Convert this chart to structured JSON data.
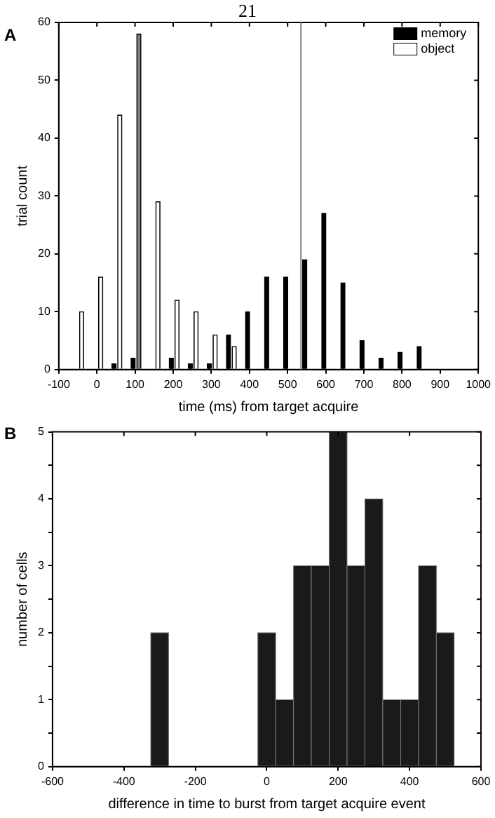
{
  "chart_data": [
    {
      "type": "bar",
      "annotations": [
        "21",
        "A"
      ],
      "xlabel": "time (ms) from target acquire",
      "ylabel": "trial count",
      "legend": "top right",
      "grid": false,
      "xlim": [
        -100,
        1000
      ],
      "xticks": [
        -100,
        0,
        100,
        200,
        300,
        400,
        500,
        600,
        700,
        800,
        900,
        1000
      ],
      "ylim": [
        0,
        60
      ],
      "yticks": [
        0,
        10,
        20,
        30,
        40,
        50,
        60
      ],
      "ref_lines": [
        {
          "axis": "x",
          "value": 535,
          "color": "#808080"
        }
      ],
      "series": [
        {
          "name": "memory",
          "color": "#000000",
          "x": [
            45,
            95,
            195,
            245,
            295,
            345,
            395,
            445,
            495,
            545,
            595,
            645,
            695,
            745,
            795,
            845
          ],
          "values": [
            1,
            2,
            2,
            1,
            1,
            6,
            10,
            16,
            16,
            19,
            27,
            15,
            5,
            2,
            3,
            4
          ]
        },
        {
          "name": "object",
          "color": "#ffffff",
          "colors": [
            "#ffffff",
            "#ffffff",
            "#ffffff",
            "#808080",
            "#ffffff",
            "#ffffff",
            "#ffffff",
            "#ffffff",
            "#ffffff"
          ],
          "x": [
            -40,
            10,
            60,
            110,
            160,
            210,
            260,
            310,
            360
          ],
          "values": [
            10,
            16,
            44,
            58,
            29,
            12,
            10,
            6,
            4
          ]
        }
      ]
    },
    {
      "type": "histogram",
      "annotations": [
        "B"
      ],
      "xlabel": "difference in time to burst from target acquire event",
      "ylabel": "number of cells",
      "grid": false,
      "color": "#1a1a1a",
      "xlim": [
        -600,
        600
      ],
      "xticks": [
        -600,
        -400,
        -200,
        0,
        200,
        400,
        600
      ],
      "ylim": [
        0,
        5
      ],
      "yticks": [
        0,
        {
          "value": 0.5,
          "label": null
        },
        1,
        {
          "value": 1.5,
          "label": null
        },
        2,
        {
          "value": 2.5,
          "label": null
        },
        3,
        {
          "value": 3.5,
          "label": null
        },
        4,
        {
          "value": 4.5,
          "label": null
        },
        5
      ],
      "bins": [
        -325,
        -275,
        -225,
        -175,
        -125,
        -75,
        -25,
        25,
        75,
        125,
        175,
        225,
        275,
        325,
        375,
        425,
        475,
        525
      ],
      "values": [
        2,
        0,
        0,
        0,
        0,
        0,
        2,
        1,
        3,
        3,
        5,
        3,
        4,
        1,
        1,
        3,
        2
      ]
    }
  ]
}
